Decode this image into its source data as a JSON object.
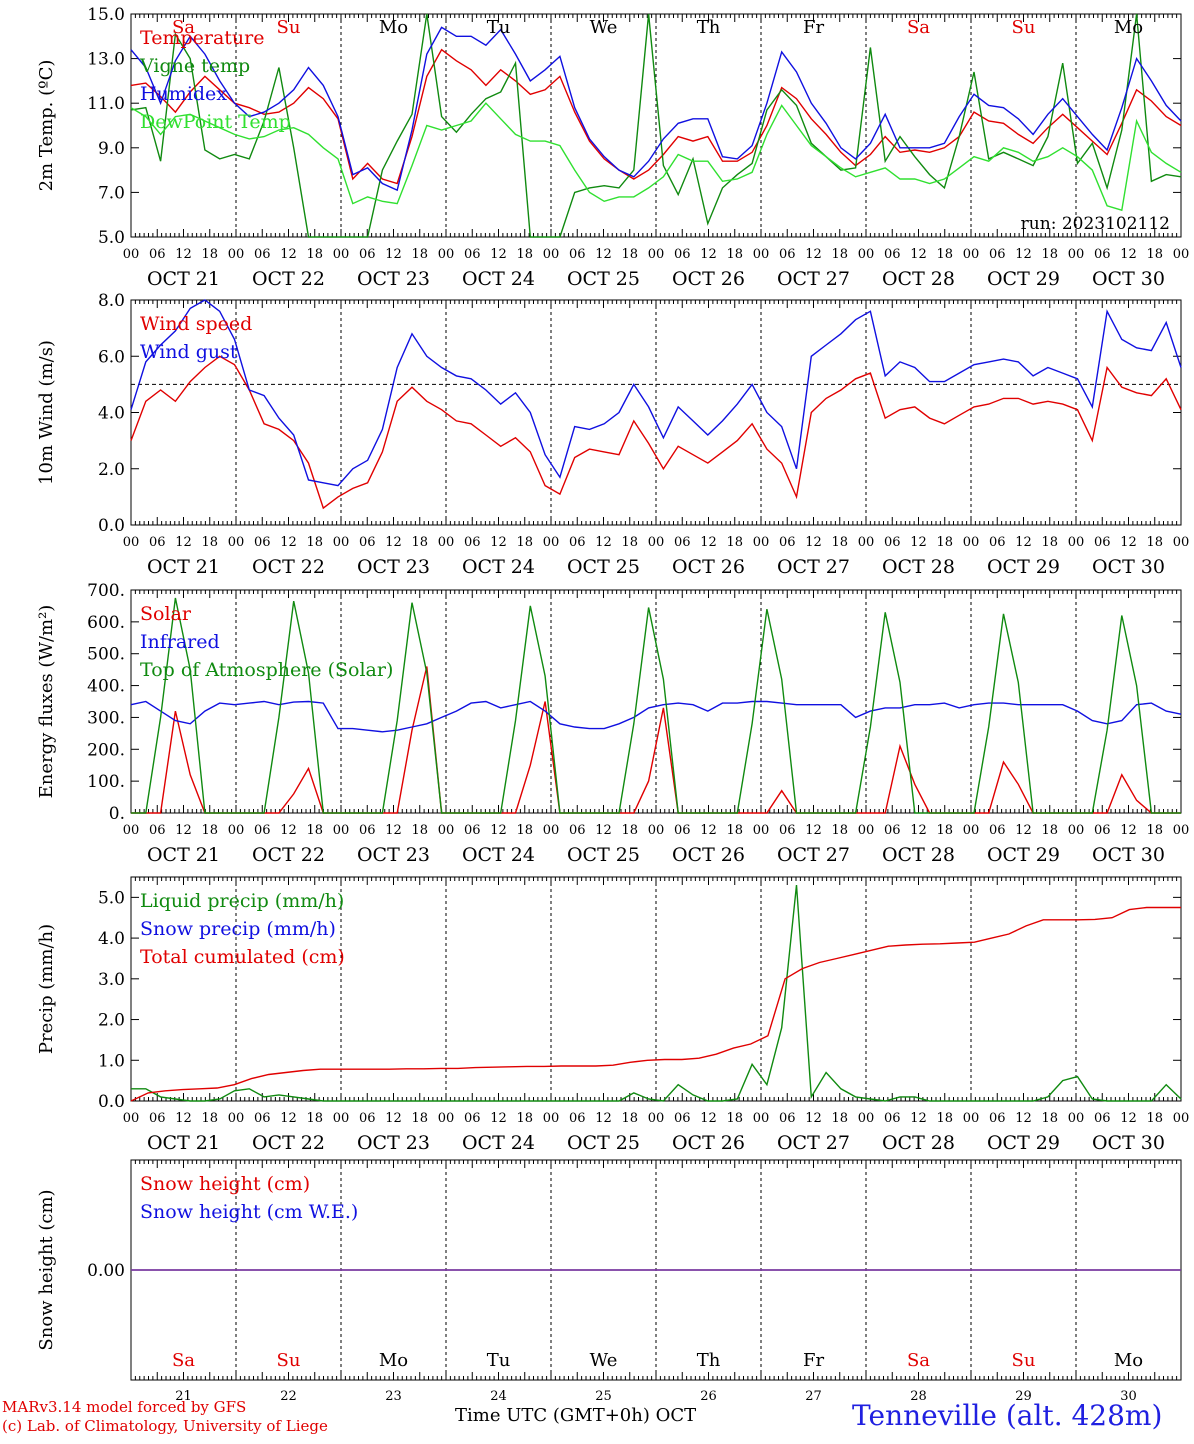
{
  "colors": {
    "red": "#e00000",
    "green": "#108a10",
    "blue": "#1010e0",
    "lightgreen": "#30e030",
    "weekend": "#e00000",
    "axis": "#000000",
    "snow_line": "#7a3aa0"
  },
  "time_axis": {
    "hour_ticks": [
      "00",
      "06",
      "12",
      "18"
    ],
    "day_labels": [
      "OCT 21",
      "OCT 22",
      "OCT 23",
      "OCT 24",
      "OCT 25",
      "OCT 26",
      "OCT 27",
      "OCT 28",
      "OCT 29",
      "OCT 30"
    ],
    "weekdays": [
      "Sa",
      "Su",
      "Mo",
      "Tu",
      "We",
      "Th",
      "Fr",
      "Sa",
      "Su",
      "Mo"
    ],
    "weekend": [
      true,
      true,
      false,
      false,
      false,
      false,
      false,
      true,
      true,
      false
    ],
    "day_numbers": [
      "21",
      "22",
      "23",
      "24",
      "25",
      "26",
      "27",
      "28",
      "29",
      "30"
    ],
    "start": "2023-10-21 00 UTC",
    "step_hours": 3
  },
  "footer": {
    "model": "MARv3.14 model forced by GFS",
    "credit": "(c) Lab. of Climatology, University of Liege",
    "xlabel": "Time UTC (GMT+0h) OCT",
    "station": "Tenneville (alt. 428m)"
  },
  "chart_data": [
    {
      "type": "line",
      "ylabel": "2m Temp. (ºC)",
      "ylim": [
        5,
        15
      ],
      "yticks": [
        "5.0",
        "7.0",
        "9.0",
        "11.0",
        "13.0",
        "15.0"
      ],
      "run_label": "run: 2023102112",
      "series": [
        {
          "name": "Temperature",
          "color": "red",
          "values": [
            11.8,
            11.9,
            11.3,
            10.6,
            11.5,
            12.2,
            11.6,
            11.0,
            10.8,
            10.5,
            10.6,
            11.0,
            11.7,
            11.2,
            10.3,
            7.6,
            8.3,
            7.6,
            7.4,
            9.5,
            12.2,
            13.4,
            12.9,
            12.5,
            11.8,
            12.5,
            12.0,
            11.4,
            11.6,
            12.2,
            10.6,
            9.3,
            8.5,
            8.0,
            7.6,
            8.0,
            8.7,
            9.5,
            9.3,
            9.5,
            8.4,
            8.4,
            8.8,
            10.0,
            11.7,
            11.2,
            10.3,
            9.6,
            8.8,
            8.2,
            8.7,
            9.5,
            8.8,
            8.9,
            8.8,
            9.0,
            9.5,
            10.6,
            10.2,
            10.1,
            9.6,
            9.2,
            9.9,
            10.5,
            9.9,
            9.3,
            8.7,
            10.1,
            11.6,
            11.1,
            10.4,
            10.0
          ]
        },
        {
          "name": "Vigne temp",
          "color": "green",
          "values": [
            10.7,
            10.8,
            8.4,
            14.1,
            13.0,
            8.9,
            8.5,
            8.7,
            8.5,
            10.2,
            12.6,
            9.0,
            5.0,
            5.0,
            5.0,
            5.0,
            5.0,
            8.0,
            9.3,
            10.5,
            15.0,
            10.4,
            9.7,
            10.5,
            11.2,
            11.5,
            12.8,
            5.0,
            5.0,
            5.0,
            7.0,
            7.2,
            7.3,
            7.2,
            8.0,
            15.0,
            8.2,
            6.9,
            8.5,
            5.6,
            7.2,
            7.8,
            8.3,
            10.7,
            11.6,
            10.9,
            9.2,
            8.6,
            8.0,
            8.1,
            13.5,
            8.4,
            9.5,
            8.6,
            7.8,
            7.2,
            9.5,
            12.4,
            8.5,
            8.8,
            8.5,
            8.2,
            9.5,
            12.8,
            8.3,
            9.2,
            7.2,
            9.8,
            15.0,
            7.5,
            7.8,
            7.7
          ]
        },
        {
          "name": "Humidex",
          "color": "blue",
          "values": [
            13.4,
            12.6,
            11.0,
            12.9,
            14.0,
            13.2,
            12.0,
            11.0,
            10.4,
            10.6,
            11.0,
            11.6,
            12.6,
            11.8,
            10.4,
            7.8,
            8.1,
            7.4,
            7.1,
            9.8,
            13.2,
            14.4,
            14.0,
            14.0,
            13.6,
            14.3,
            13.2,
            12.0,
            12.5,
            13.1,
            10.8,
            9.4,
            8.6,
            8.0,
            7.7,
            8.4,
            9.4,
            10.1,
            10.3,
            10.3,
            8.6,
            8.5,
            9.1,
            11.0,
            13.3,
            12.4,
            11.0,
            10.1,
            9.0,
            8.5,
            9.2,
            10.5,
            9.0,
            9.0,
            9.0,
            9.2,
            10.4,
            11.4,
            10.9,
            10.8,
            10.3,
            9.6,
            10.5,
            11.2,
            10.4,
            9.6,
            8.9,
            10.8,
            13.0,
            12.0,
            10.9,
            10.2
          ]
        },
        {
          "name": "DewPoint Temp",
          "color": "lightgreen",
          "values": [
            10.8,
            10.4,
            9.6,
            10.4,
            10.5,
            10.2,
            9.9,
            9.6,
            9.4,
            9.5,
            9.8,
            9.9,
            9.6,
            9.0,
            8.5,
            6.5,
            6.8,
            6.6,
            6.5,
            8.2,
            10.0,
            9.8,
            10.0,
            10.2,
            11.0,
            10.3,
            9.6,
            9.3,
            9.3,
            9.1,
            8.0,
            7.0,
            6.6,
            6.8,
            6.8,
            7.2,
            7.7,
            8.7,
            8.4,
            8.4,
            7.5,
            7.6,
            7.9,
            9.6,
            10.9,
            10.0,
            9.1,
            8.6,
            8.1,
            7.7,
            7.9,
            8.1,
            7.6,
            7.6,
            7.4,
            7.6,
            8.1,
            8.6,
            8.4,
            9.0,
            8.8,
            8.4,
            8.6,
            9.0,
            8.6,
            8.0,
            6.4,
            6.2,
            10.2,
            8.8,
            8.3,
            7.9
          ]
        }
      ]
    },
    {
      "type": "line",
      "ylabel": "10m Wind (m/s)",
      "ylim": [
        0,
        8
      ],
      "yticks": [
        "0.0",
        "2.0",
        "4.0",
        "6.0",
        "8.0"
      ],
      "reference_line": 5,
      "series": [
        {
          "name": "Wind speed",
          "color": "red",
          "values": [
            3.0,
            4.4,
            4.8,
            4.4,
            5.1,
            5.6,
            6.0,
            5.7,
            4.8,
            3.6,
            3.4,
            3.0,
            2.2,
            0.6,
            1.0,
            1.3,
            1.5,
            2.6,
            4.4,
            4.9,
            4.4,
            4.1,
            3.7,
            3.6,
            3.2,
            2.8,
            3.1,
            2.6,
            1.4,
            1.1,
            2.4,
            2.7,
            2.6,
            2.5,
            3.7,
            2.9,
            2.0,
            2.8,
            2.5,
            2.2,
            2.6,
            3.0,
            3.6,
            2.7,
            2.2,
            1.0,
            4.0,
            4.5,
            4.8,
            5.2,
            5.4,
            3.8,
            4.1,
            4.2,
            3.8,
            3.6,
            3.9,
            4.2,
            4.3,
            4.5,
            4.5,
            4.3,
            4.4,
            4.3,
            4.1,
            3.0,
            5.6,
            4.9,
            4.7,
            4.6,
            5.2,
            4.1
          ]
        },
        {
          "name": "Wind gust",
          "color": "blue",
          "values": [
            4.1,
            5.8,
            6.4,
            6.9,
            7.7,
            8.0,
            7.6,
            6.6,
            4.8,
            4.6,
            3.8,
            3.2,
            1.6,
            1.5,
            1.4,
            2.0,
            2.3,
            3.4,
            5.6,
            6.8,
            6.0,
            5.6,
            5.3,
            5.2,
            4.8,
            4.3,
            4.7,
            4.0,
            2.5,
            1.7,
            3.5,
            3.4,
            3.6,
            4.0,
            5.0,
            4.2,
            3.1,
            4.2,
            3.7,
            3.2,
            3.7,
            4.3,
            5.0,
            4.0,
            3.5,
            2.0,
            6.0,
            6.4,
            6.8,
            7.3,
            7.6,
            5.3,
            5.8,
            5.6,
            5.1,
            5.1,
            5.4,
            5.7,
            5.8,
            5.9,
            5.8,
            5.3,
            5.6,
            5.4,
            5.2,
            4.2,
            7.6,
            6.6,
            6.3,
            6.2,
            7.2,
            5.6
          ]
        }
      ]
    },
    {
      "type": "line",
      "ylabel": "Energy fluxes (W/m²)",
      "ylim": [
        0,
        700
      ],
      "yticks": [
        "0.",
        "100.",
        "200.",
        "300.",
        "400.",
        "500.",
        "600.",
        "700."
      ],
      "series": [
        {
          "name": "Solar",
          "color": "red",
          "values": [
            0,
            0,
            0,
            320,
            120,
            0,
            0,
            0,
            0,
            0,
            0,
            60,
            140,
            0,
            0,
            0,
            0,
            0,
            0,
            260,
            460,
            0,
            0,
            0,
            0,
            0,
            0,
            150,
            350,
            0,
            0,
            0,
            0,
            0,
            0,
            100,
            330,
            0,
            0,
            0,
            0,
            0,
            0,
            0,
            70,
            0,
            0,
            0,
            0,
            0,
            0,
            0,
            210,
            90,
            0,
            0,
            0,
            0,
            0,
            160,
            90,
            0,
            0,
            0,
            0,
            0,
            0,
            120,
            40,
            0,
            0,
            0
          ]
        },
        {
          "name": "Infrared",
          "color": "blue",
          "values": [
            340,
            350,
            320,
            290,
            280,
            320,
            345,
            340,
            345,
            350,
            340,
            348,
            350,
            345,
            265,
            265,
            260,
            255,
            260,
            270,
            280,
            300,
            320,
            345,
            350,
            330,
            340,
            350,
            320,
            280,
            270,
            265,
            265,
            280,
            300,
            330,
            340,
            345,
            340,
            320,
            345,
            345,
            350,
            350,
            345,
            340,
            340,
            340,
            340,
            300,
            320,
            330,
            330,
            340,
            340,
            345,
            330,
            340,
            345,
            345,
            340,
            340,
            340,
            340,
            320,
            290,
            280,
            290,
            340,
            345,
            320,
            310
          ]
        },
        {
          "name": "Top of Atmosphere (Solar)",
          "color": "green",
          "values": [
            0,
            0,
            300,
            675,
            450,
            0,
            0,
            0,
            0,
            0,
            300,
            665,
            440,
            0,
            0,
            0,
            0,
            0,
            290,
            660,
            440,
            0,
            0,
            0,
            0,
            0,
            290,
            650,
            430,
            0,
            0,
            0,
            0,
            0,
            280,
            645,
            420,
            0,
            0,
            0,
            0,
            0,
            280,
            640,
            420,
            0,
            0,
            0,
            0,
            0,
            270,
            630,
            410,
            0,
            0,
            0,
            0,
            0,
            270,
            625,
            410,
            0,
            0,
            0,
            0,
            0,
            260,
            620,
            400,
            0,
            0,
            0
          ]
        }
      ]
    },
    {
      "type": "line",
      "ylabel": "Precip (mm/h)",
      "ylim": [
        0,
        5.5
      ],
      "yticks": [
        "0.0",
        "1.0",
        "2.0",
        "3.0",
        "4.0",
        "5.0"
      ],
      "series": [
        {
          "name": "Liquid precip (mm/h)",
          "color": "green",
          "values": [
            0.3,
            0.3,
            0.1,
            0.05,
            0,
            0,
            0.05,
            0.25,
            0.3,
            0.1,
            0.15,
            0.1,
            0.05,
            0,
            0,
            0,
            0,
            0,
            0,
            0,
            0,
            0,
            0,
            0,
            0,
            0,
            0,
            0,
            0,
            0,
            0,
            0,
            0,
            0,
            0.2,
            0.05,
            0,
            0.4,
            0.15,
            0,
            0,
            0.05,
            0.9,
            0.4,
            1.8,
            5.3,
            0.1,
            0.7,
            0.3,
            0.1,
            0.05,
            0,
            0.1,
            0.1,
            0,
            0,
            0,
            0,
            0,
            0,
            0,
            0,
            0.1,
            0.5,
            0.6,
            0.05,
            0,
            0,
            0,
            0,
            0.4,
            0.05
          ]
        },
        {
          "name": "Snow precip (mm/h)",
          "color": "blue",
          "values": []
        },
        {
          "name": "Total cumulated (cm)",
          "color": "red",
          "values": [
            0.0,
            0.2,
            0.25,
            0.28,
            0.3,
            0.32,
            0.4,
            0.55,
            0.65,
            0.7,
            0.75,
            0.78,
            0.78,
            0.78,
            0.78,
            0.78,
            0.79,
            0.79,
            0.8,
            0.8,
            0.82,
            0.83,
            0.84,
            0.85,
            0.85,
            0.86,
            0.86,
            0.86,
            0.88,
            0.95,
            1.0,
            1.02,
            1.02,
            1.05,
            1.15,
            1.3,
            1.4,
            1.6,
            3.0,
            3.25,
            3.4,
            3.5,
            3.6,
            3.7,
            3.8,
            3.83,
            3.85,
            3.86,
            3.88,
            3.9,
            4.0,
            4.1,
            4.3,
            4.45,
            4.45,
            4.45,
            4.46,
            4.5,
            4.7,
            4.75,
            4.75,
            4.75
          ]
        }
      ]
    },
    {
      "type": "line",
      "ylabel": "Snow height (cm)",
      "yticks": [
        "0.00"
      ],
      "series": [
        {
          "name": "Snow height (cm)",
          "color": "red",
          "values": [
            0,
            0
          ]
        },
        {
          "name": "Snow height (cm W.E.)",
          "color": "blue",
          "values": [
            0,
            0
          ]
        }
      ]
    }
  ]
}
